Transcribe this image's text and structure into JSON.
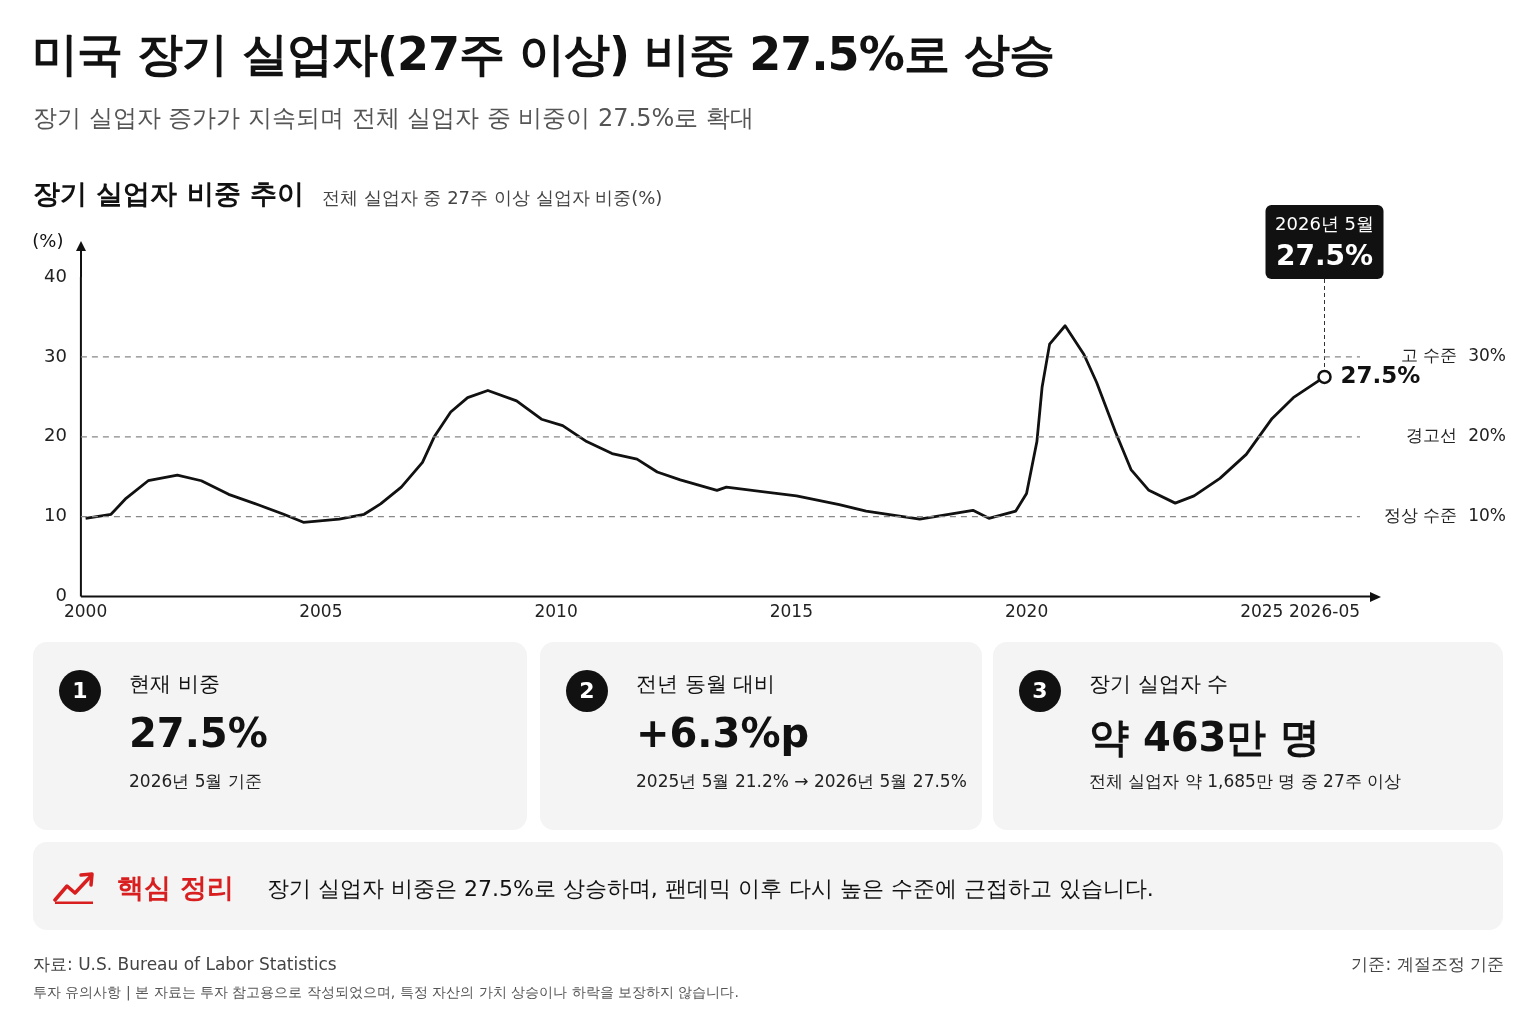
{
  "chart_data": [
    {
      "type": "line",
      "title": "미국 장기 실업자(27주 이상) 비중 27.5%로 상승",
      "subtitle": "장기 실업자 증가가 지속되며 전체 실업자 중 비중이 27.5%로 확대",
      "ylabel": "(%)",
      "x": [
        2000.0,
        2000.54,
        2000.86,
        2001.33,
        2001.95,
        2002.46,
        2003.04,
        2003.71,
        2004.21,
        2004.63,
        2005.39,
        2005.92,
        2006.27,
        2006.71,
        2007.16,
        2007.41,
        2007.76,
        2008.12,
        2008.55,
        2009.16,
        2009.69,
        2010.14,
        2010.65,
        2011.19,
        2011.72,
        2012.15,
        2012.64,
        2013.42,
        2013.62,
        2015.11,
        2016.02,
        2016.59,
        2017.73,
        2018.86,
        2019.2,
        2019.77,
        2020.0,
        2020.22,
        2020.33,
        2020.49,
        2020.82,
        2021.22,
        2021.49,
        2021.89,
        2022.22,
        2022.6,
        2023.16,
        2023.56,
        2024.11,
        2024.67,
        2025.22,
        2025.67,
        2026.333
      ],
      "series": [
        {
          "color": "#111111",
          "values": [
            9.8,
            10.3,
            12.3,
            14.5,
            15.2,
            14.5,
            12.8,
            11.4,
            10.3,
            9.3,
            9.7,
            10.3,
            11.6,
            13.7,
            16.8,
            20.0,
            23.1,
            24.9,
            25.8,
            24.5,
            22.2,
            21.4,
            19.4,
            17.9,
            17.2,
            15.6,
            14.6,
            13.3,
            13.7,
            12.6,
            11.5,
            10.7,
            9.7,
            10.8,
            9.8,
            10.7,
            12.9,
            19.4,
            26.2,
            31.6,
            33.9,
            30.3,
            26.8,
            20.6,
            15.9,
            13.3,
            11.7,
            12.6,
            14.8,
            17.8,
            22.3,
            24.9,
            27.5
          ]
        }
      ],
      "xlim": [
        1999.9,
        2027.3
      ],
      "xticks": [
        2000,
        2005,
        2010,
        2015,
        2020,
        2025,
        {
          "value": 2026.333,
          "label": "2026-05"
        }
      ],
      "ylim": [
        0,
        40
      ],
      "yticks": [
        0,
        10,
        20,
        30,
        40
      ],
      "grid": false,
      "legend": false,
      "marker": "none",
      "line_style": "solid",
      "ref_lines": [
        {
          "axis": "y",
          "value": 30,
          "label": "고 수준  30%",
          "color": "#888888",
          "line_style": "dashed"
        },
        {
          "axis": "y",
          "value": 20,
          "label": "경고선  20%",
          "color": "#888888",
          "line_style": "dashed"
        },
        {
          "axis": "y",
          "value": 10,
          "label": "정상 수준  10%",
          "color": "#888888",
          "line_style": "dashed"
        }
      ],
      "annotations": [
        "장기 실업자 비중 추이",
        "전체 실업자 중 27주 이상 실업자 비중(%)",
        {
          "text": "2026년 5월\n27.5%",
          "x": 2026.333,
          "y": 27.5
        },
        {
          "text": "27.5%",
          "x": 2026.333,
          "y": 27.5
        },
        "자료: U.S. Bureau of Labor Statistics",
        "기준: 계절조정 기준",
        "투자 유의사항  |  본 자료는 투자 참고용으로 작성되었으며, 특정 자산의 가치 상승이나 하락을 보장하지 않습니다."
      ]
    },
    {
      "type": "other",
      "annotations": [
        "1",
        "현재 비중",
        "27.5%",
        "2026년 5월 기준",
        "2",
        "전년 동월 대비",
        "+6.3%p",
        "2025년 5월 21.2% → 2026년 5월 27.5%",
        "3",
        "장기 실업자 수",
        "약 463만 명",
        "전체 실업자 약 1,685만 명 중 27주 이상",
        "핵심 정리",
        "장기 실업자 비중은 27.5%로 상승하며, 팬데믹 이후 다시 높은 수준에 근접하고 있습니다."
      ]
    }
  ]
}
